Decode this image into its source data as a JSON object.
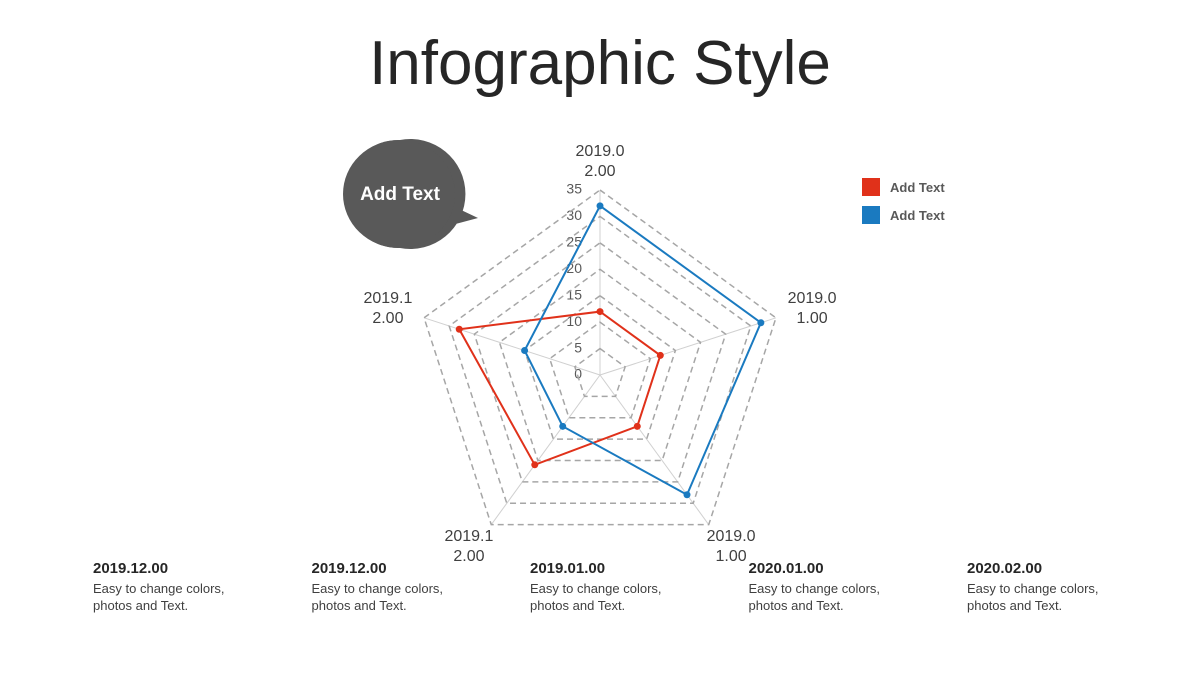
{
  "chart_data": {
    "type": "radar",
    "title": "Infographic Style",
    "categories": [
      "2019.02.00",
      "2019.01.00",
      "2019.01.00",
      "2019.12.00",
      "2019.12.00"
    ],
    "series": [
      {
        "name": "Add Text",
        "color": "#e0311a",
        "values": [
          12,
          12,
          12,
          21,
          28
        ]
      },
      {
        "name": "Add Text",
        "color": "#1a7ac0",
        "values": [
          32,
          32,
          28,
          12,
          15
        ]
      }
    ],
    "rlim": [
      0,
      35
    ],
    "rticks": [
      0,
      5,
      10,
      15,
      20,
      25,
      30,
      35
    ],
    "grid": true
  },
  "callout": "Add Text",
  "items": [
    {
      "title": "2019.12.00",
      "text": "Easy to change colors, photos and Text."
    },
    {
      "title": "2019.12.00",
      "text": "Easy to change colors, photos and Text."
    },
    {
      "title": "2019.01.00",
      "text": "Easy to change colors, photos and Text."
    },
    {
      "title": "2020.01.00",
      "text": "Easy to change colors, photos and Text."
    },
    {
      "title": "2020.02.00",
      "text": "Easy to change colors, photos and Text."
    }
  ]
}
